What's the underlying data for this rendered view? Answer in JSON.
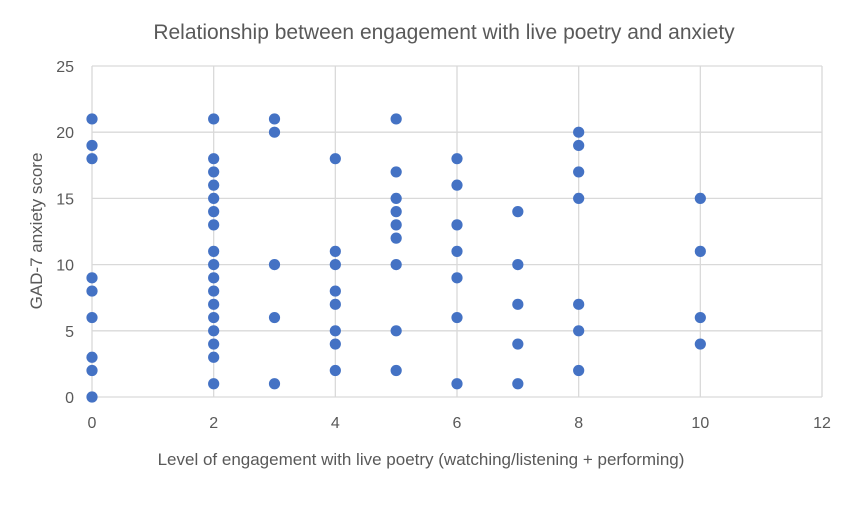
{
  "chart_data": {
    "type": "scatter",
    "title": "Relationship between engagement with live poetry and anxiety",
    "xlabel": "Level of engagement with live poetry (watching/listening + performing)",
    "ylabel": "GAD-7 anxiety score",
    "xlim": [
      0,
      12
    ],
    "ylim": [
      0,
      25
    ],
    "x_ticks": [
      "0",
      "2",
      "4",
      "6",
      "8",
      "10",
      "12"
    ],
    "y_ticks": [
      "0",
      "5",
      "10",
      "15",
      "20",
      "25"
    ],
    "grid": true,
    "legend": "none",
    "series": [
      {
        "color": "#4472C4",
        "points": [
          [
            0,
            21
          ],
          [
            0,
            19
          ],
          [
            0,
            18
          ],
          [
            0,
            9
          ],
          [
            0,
            8
          ],
          [
            0,
            6
          ],
          [
            0,
            3
          ],
          [
            0,
            2
          ],
          [
            0,
            0
          ],
          [
            2,
            21
          ],
          [
            2,
            18
          ],
          [
            2,
            17
          ],
          [
            2,
            16
          ],
          [
            2,
            15
          ],
          [
            2,
            14
          ],
          [
            2,
            13
          ],
          [
            2,
            11
          ],
          [
            2,
            10
          ],
          [
            2,
            9
          ],
          [
            2,
            8
          ],
          [
            2,
            7
          ],
          [
            2,
            6
          ],
          [
            2,
            5
          ],
          [
            2,
            4
          ],
          [
            2,
            3
          ],
          [
            2,
            1
          ],
          [
            3,
            21
          ],
          [
            3,
            20
          ],
          [
            3,
            10
          ],
          [
            3,
            6
          ],
          [
            3,
            1
          ],
          [
            4,
            18
          ],
          [
            4,
            11
          ],
          [
            4,
            10
          ],
          [
            4,
            8
          ],
          [
            4,
            7
          ],
          [
            4,
            5
          ],
          [
            4,
            4
          ],
          [
            4,
            2
          ],
          [
            5,
            21
          ],
          [
            5,
            17
          ],
          [
            5,
            15
          ],
          [
            5,
            14
          ],
          [
            5,
            13
          ],
          [
            5,
            12
          ],
          [
            5,
            10
          ],
          [
            5,
            5
          ],
          [
            5,
            2
          ],
          [
            6,
            18
          ],
          [
            6,
            16
          ],
          [
            6,
            13
          ],
          [
            6,
            11
          ],
          [
            6,
            9
          ],
          [
            6,
            6
          ],
          [
            6,
            1
          ],
          [
            7,
            14
          ],
          [
            7,
            10
          ],
          [
            7,
            7
          ],
          [
            7,
            4
          ],
          [
            7,
            1
          ],
          [
            8,
            20
          ],
          [
            8,
            19
          ],
          [
            8,
            17
          ],
          [
            8,
            15
          ],
          [
            8,
            7
          ],
          [
            8,
            5
          ],
          [
            8,
            2
          ],
          [
            10,
            15
          ],
          [
            10,
            11
          ],
          [
            10,
            6
          ],
          [
            10,
            4
          ]
        ]
      }
    ]
  },
  "colors": {
    "grid": "#D9D9D9",
    "text": "#595959",
    "marker": "#4472C4"
  }
}
